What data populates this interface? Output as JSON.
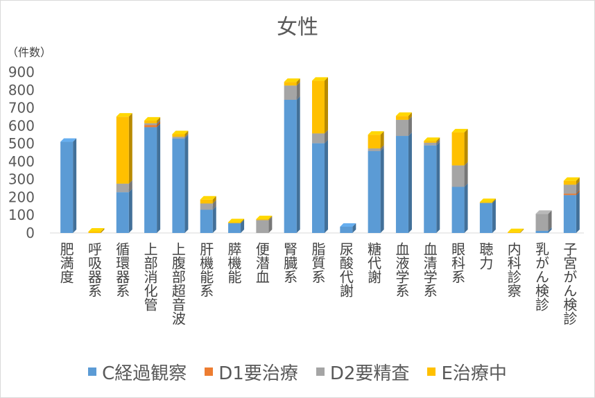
{
  "chart_data": {
    "type": "bar",
    "stacked": true,
    "style": "3d",
    "title": "女性",
    "ylabel": "（件数）",
    "ylim": [
      0,
      900
    ],
    "yticks": [
      0,
      100,
      200,
      300,
      400,
      500,
      600,
      700,
      800,
      900
    ],
    "grid": false,
    "legend_position": "bottom",
    "categories": [
      "肥満度",
      "呼吸器系",
      "循環器系",
      "上部消化管",
      "上腹部超音波",
      "肝機能系",
      "膵機能",
      "便潜血",
      "腎臓系",
      "脂質系",
      "尿酸代謝",
      "糖代謝",
      "血液学系",
      "血清学系",
      "眼科系",
      "聴力",
      "内科診察",
      "乳がん検診",
      "子宮がん検診"
    ],
    "series": [
      {
        "name": "C経過観察",
        "color": "#5b9bd5",
        "values": [
          510,
          0,
          228,
          592,
          528,
          130,
          55,
          0,
          745,
          502,
          35,
          458,
          543,
          490,
          258,
          168,
          0,
          12,
          212
        ]
      },
      {
        "name": "D1要治療",
        "color": "#ed7d31",
        "values": [
          0,
          0,
          0,
          12,
          0,
          0,
          0,
          0,
          0,
          0,
          0,
          0,
          0,
          0,
          0,
          0,
          0,
          0,
          8
        ]
      },
      {
        "name": "D2要精査",
        "color": "#a5a5a5",
        "values": [
          0,
          0,
          48,
          10,
          10,
          35,
          0,
          72,
          80,
          55,
          0,
          15,
          90,
          15,
          120,
          0,
          0,
          95,
          50
        ]
      },
      {
        "name": "E治療中",
        "color": "#ffc000",
        "values": [
          0,
          8,
          375,
          15,
          15,
          22,
          5,
          5,
          20,
          295,
          0,
          77,
          22,
          10,
          185,
          5,
          5,
          0,
          22
        ]
      }
    ]
  }
}
